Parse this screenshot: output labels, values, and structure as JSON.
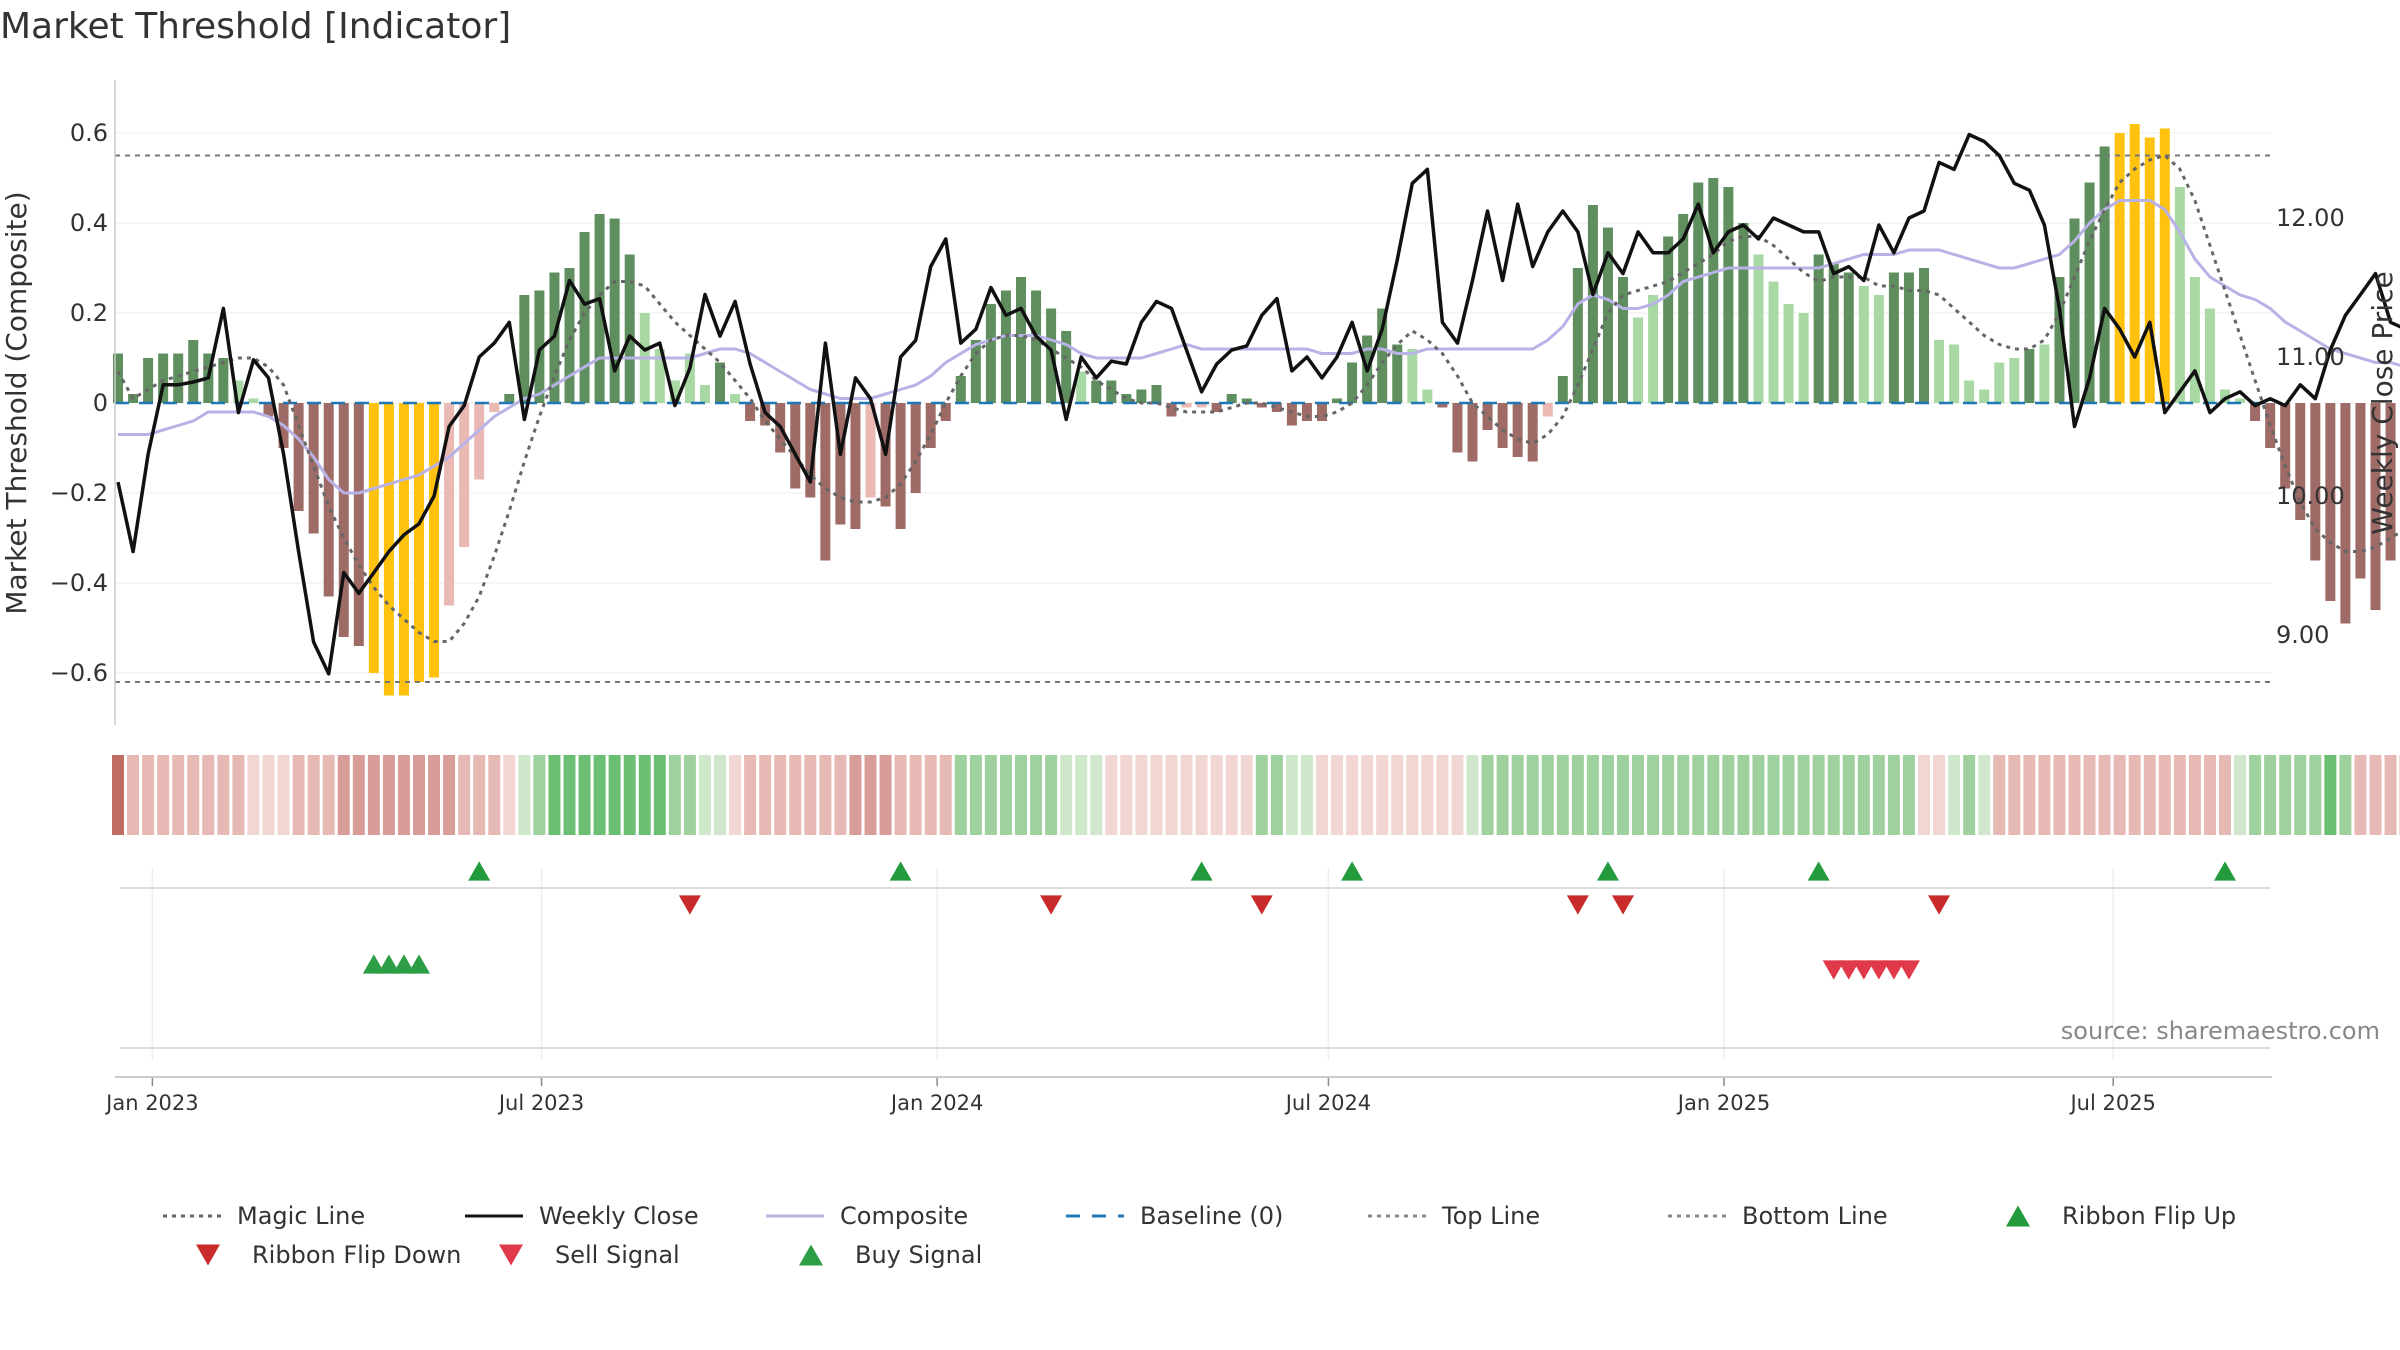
{
  "chart_data": {
    "type": "bar",
    "title": "Market Threshold [Indicator]",
    "ylabel": "Market Threshold (Composite)",
    "y2label": "Weekly Close Price",
    "ylim": [
      -0.72,
      0.72
    ],
    "y2lim": [
      8.35,
      12.9
    ],
    "yticks": [
      0.6,
      0.4,
      0.2,
      0,
      -0.2,
      -0.4,
      -0.6
    ],
    "ytick_labels": [
      "0.6",
      "0.4",
      "0.2",
      "0",
      "−0.2",
      "−0.4",
      "−0.6"
    ],
    "y2ticks": [
      12,
      11,
      10,
      9
    ],
    "y2tick_labels": [
      "12.00",
      "11.00",
      "10.00",
      "9.00"
    ],
    "x_start": "2022-12-16",
    "x_step_days": 7,
    "xticks": [
      {
        "date": "2023-01-01",
        "label": "Jan 2023"
      },
      {
        "date": "2023-07-01",
        "label": "Jul 2023"
      },
      {
        "date": "2024-01-01",
        "label": "Jan 2024"
      },
      {
        "date": "2024-07-01",
        "label": "Jul 2024"
      },
      {
        "date": "2025-01-01",
        "label": "Jan 2025"
      },
      {
        "date": "2025-07-01",
        "label": "Jul 2025"
      }
    ],
    "top_line": 0.55,
    "bottom_line": -0.62,
    "baseline": 0,
    "composite": [
      0.11,
      0.02,
      0.1,
      0.11,
      0.11,
      0.14,
      0.11,
      0.1,
      0.05,
      0.01,
      -0.03,
      -0.1,
      -0.24,
      -0.29,
      -0.43,
      -0.52,
      -0.54,
      -0.6,
      -0.65,
      -0.65,
      -0.62,
      -0.61,
      -0.45,
      -0.32,
      -0.17,
      -0.02,
      0.02,
      0.24,
      0.25,
      0.29,
      0.3,
      0.38,
      0.42,
      0.41,
      0.33,
      0.2,
      0.12,
      0.05,
      0.11,
      0.04,
      0.09,
      0.02,
      -0.04,
      -0.05,
      -0.11,
      -0.19,
      -0.21,
      -0.35,
      -0.27,
      -0.28,
      -0.21,
      -0.23,
      -0.28,
      -0.2,
      -0.1,
      -0.04,
      0.06,
      0.14,
      0.22,
      0.25,
      0.28,
      0.25,
      0.21,
      0.16,
      0.07,
      0.05,
      0.05,
      0.02,
      0.03,
      0.04,
      -0.03,
      -0.01,
      -0.01,
      -0.02,
      0.02,
      0.01,
      -0.01,
      -0.02,
      -0.05,
      -0.04,
      -0.04,
      0.01,
      0.09,
      0.15,
      0.21,
      0.13,
      0.12,
      0.03,
      -0.01,
      -0.11,
      -0.13,
      -0.06,
      -0.1,
      -0.12,
      -0.13,
      -0.03,
      0.06,
      0.3,
      0.44,
      0.39,
      0.28,
      0.19,
      0.24,
      0.37,
      0.42,
      0.49,
      0.5,
      0.48,
      0.4,
      0.33,
      0.27,
      0.22,
      0.2,
      0.33,
      0.31,
      0.29,
      0.26,
      0.24,
      0.29,
      0.29,
      0.3,
      0.14,
      0.13,
      0.05,
      0.03,
      0.09,
      0.1,
      0.12,
      0.13,
      0.28,
      0.41,
      0.49,
      0.57,
      0.6,
      0.62,
      0.59,
      0.61,
      0.48,
      0.28,
      0.21,
      0.03,
      0.01,
      -0.04,
      -0.1,
      -0.19,
      -0.26,
      -0.35,
      -0.44,
      -0.49,
      -0.39,
      -0.46,
      -0.35,
      -0.37,
      -0.4,
      -0.24,
      -0.21,
      -0.18,
      -0.14,
      -0.04,
      0.01,
      0.04,
      0.07,
      0.18,
      0.23,
      0.21,
      0.28
    ],
    "magic_line": [
      0.07,
      0.01,
      0.03,
      0.05,
      0.06,
      0.07,
      0.08,
      0.09,
      0.1,
      0.1,
      0.08,
      0.04,
      -0.05,
      -0.14,
      -0.23,
      -0.3,
      -0.36,
      -0.41,
      -0.45,
      -0.48,
      -0.51,
      -0.53,
      -0.53,
      -0.49,
      -0.43,
      -0.34,
      -0.24,
      -0.13,
      -0.03,
      0.06,
      0.14,
      0.2,
      0.24,
      0.27,
      0.27,
      0.26,
      0.22,
      0.18,
      0.15,
      0.12,
      0.09,
      0.05,
      0.01,
      -0.04,
      -0.08,
      -0.12,
      -0.16,
      -0.19,
      -0.21,
      -0.22,
      -0.22,
      -0.21,
      -0.18,
      -0.13,
      -0.07,
      0.0,
      0.06,
      0.11,
      0.14,
      0.15,
      0.15,
      0.14,
      0.12,
      0.1,
      0.08,
      0.05,
      0.03,
      0.01,
      0.0,
      0.0,
      -0.01,
      -0.02,
      -0.02,
      -0.02,
      -0.01,
      0.0,
      0.0,
      -0.01,
      -0.02,
      -0.03,
      -0.03,
      -0.02,
      0.0,
      0.04,
      0.09,
      0.13,
      0.16,
      0.14,
      0.11,
      0.06,
      0.0,
      -0.03,
      -0.06,
      -0.08,
      -0.09,
      -0.07,
      -0.03,
      0.04,
      0.12,
      0.2,
      0.24,
      0.25,
      0.26,
      0.27,
      0.29,
      0.31,
      0.33,
      0.36,
      0.37,
      0.37,
      0.35,
      0.32,
      0.29,
      0.27,
      0.28,
      0.28,
      0.28,
      0.26,
      0.26,
      0.25,
      0.25,
      0.24,
      0.21,
      0.18,
      0.15,
      0.13,
      0.12,
      0.12,
      0.14,
      0.2,
      0.28,
      0.36,
      0.43,
      0.49,
      0.52,
      0.54,
      0.55,
      0.52,
      0.45,
      0.35,
      0.25,
      0.15,
      0.05,
      -0.05,
      -0.14,
      -0.22,
      -0.28,
      -0.31,
      -0.33,
      -0.33,
      -0.32,
      -0.3,
      -0.28,
      -0.24,
      -0.2,
      -0.15,
      -0.1,
      -0.05,
      -0.02,
      -0.01,
      0.0,
      0.02,
      0.05,
      0.09
    ],
    "composite_line": [
      -0.07,
      -0.07,
      -0.07,
      -0.06,
      -0.05,
      -0.04,
      -0.02,
      -0.02,
      -0.02,
      -0.02,
      -0.03,
      -0.05,
      -0.08,
      -0.12,
      -0.17,
      -0.2,
      -0.2,
      -0.19,
      -0.18,
      -0.17,
      -0.16,
      -0.14,
      -0.12,
      -0.09,
      -0.06,
      -0.03,
      -0.01,
      0.01,
      0.02,
      0.04,
      0.06,
      0.08,
      0.1,
      0.1,
      0.1,
      0.1,
      0.1,
      0.1,
      0.1,
      0.11,
      0.12,
      0.12,
      0.11,
      0.09,
      0.07,
      0.05,
      0.03,
      0.02,
      0.01,
      0.01,
      0.01,
      0.02,
      0.03,
      0.04,
      0.06,
      0.09,
      0.11,
      0.13,
      0.14,
      0.15,
      0.15,
      0.15,
      0.14,
      0.13,
      0.11,
      0.1,
      0.1,
      0.1,
      0.1,
      0.11,
      0.12,
      0.13,
      0.12,
      0.12,
      0.12,
      0.12,
      0.12,
      0.12,
      0.12,
      0.12,
      0.11,
      0.11,
      0.11,
      0.12,
      0.12,
      0.11,
      0.11,
      0.12,
      0.12,
      0.12,
      0.12,
      0.12,
      0.12,
      0.12,
      0.12,
      0.14,
      0.17,
      0.22,
      0.24,
      0.23,
      0.21,
      0.21,
      0.22,
      0.24,
      0.27,
      0.28,
      0.29,
      0.3,
      0.3,
      0.3,
      0.3,
      0.3,
      0.3,
      0.3,
      0.31,
      0.32,
      0.33,
      0.33,
      0.33,
      0.34,
      0.34,
      0.34,
      0.33,
      0.32,
      0.31,
      0.3,
      0.3,
      0.31,
      0.32,
      0.33,
      0.36,
      0.4,
      0.43,
      0.45,
      0.45,
      0.45,
      0.43,
      0.38,
      0.32,
      0.28,
      0.26,
      0.24,
      0.23,
      0.21,
      0.18,
      0.16,
      0.14,
      0.12,
      0.11,
      0.1,
      0.09,
      0.09,
      0.08,
      0.08,
      0.07,
      0.06,
      0.05,
      0.05,
      0.06,
      0.08,
      0.11,
      0.14,
      0.16,
      0.17,
      0.17
    ],
    "weekly_close": [
      10.1,
      9.6,
      10.3,
      10.8,
      10.8,
      10.82,
      10.85,
      11.35,
      10.6,
      10.98,
      10.85,
      10.3,
      9.6,
      8.95,
      8.72,
      9.45,
      9.3,
      9.45,
      9.6,
      9.72,
      9.8,
      10.0,
      10.5,
      10.65,
      11.0,
      11.1,
      11.25,
      10.55,
      11.05,
      11.15,
      11.55,
      11.38,
      11.42,
      10.9,
      11.15,
      11.05,
      11.1,
      10.65,
      10.92,
      11.45,
      11.15,
      11.4,
      10.95,
      10.6,
      10.5,
      10.3,
      10.1,
      11.1,
      10.3,
      10.85,
      10.7,
      10.3,
      11.0,
      11.12,
      11.65,
      11.85,
      11.1,
      11.2,
      11.5,
      11.3,
      11.35,
      11.15,
      11.05,
      10.55,
      11.0,
      10.85,
      10.97,
      10.95,
      11.25,
      11.4,
      11.35,
      11.05,
      10.75,
      10.95,
      11.05,
      11.08,
      11.3,
      11.42,
      10.9,
      11.0,
      10.85,
      11.0,
      11.25,
      10.9,
      11.2,
      11.7,
      12.25,
      12.35,
      11.25,
      11.1,
      11.55,
      12.05,
      11.55,
      12.1,
      11.65,
      11.9,
      12.05,
      11.9,
      11.45,
      11.75,
      11.6,
      11.9,
      11.75,
      11.75,
      11.85,
      12.1,
      11.75,
      11.9,
      11.95,
      11.85,
      12.0,
      11.95,
      11.9,
      11.9,
      11.6,
      11.65,
      11.55,
      11.95,
      11.75,
      12.0,
      12.05,
      12.4,
      12.35,
      12.6,
      12.55,
      12.45,
      12.25,
      12.2,
      11.95,
      11.35,
      10.5,
      10.85,
      11.35,
      11.2,
      11.0,
      11.25,
      10.6,
      10.75,
      10.9,
      10.6,
      10.7,
      10.75,
      10.65,
      10.7,
      10.65,
      10.8,
      10.7,
      11.05,
      11.3,
      11.45,
      11.6,
      11.25,
      11.2
    ],
    "ribbon": [
      -5,
      -2,
      -2,
      -2,
      -2,
      -2,
      -2,
      -2,
      -2,
      -1,
      -1,
      -1,
      -2,
      -2,
      -2,
      -3,
      -3,
      -3,
      -3,
      -3,
      -3,
      -3,
      -3,
      -2,
      -2,
      -2,
      -1,
      1,
      2,
      3,
      3,
      3,
      3,
      3,
      3,
      3,
      3,
      2,
      2,
      1,
      1,
      -1,
      -2,
      -2,
      -2,
      -2,
      -2,
      -2,
      -2,
      -3,
      -3,
      -3,
      -2,
      -2,
      -2,
      -2,
      2,
      2,
      2,
      2,
      2,
      2,
      2,
      1,
      1,
      1,
      -1,
      -1,
      -1,
      -1,
      -1,
      -1,
      -1,
      -1,
      -1,
      -1,
      2,
      2,
      1,
      1,
      -1,
      -1,
      -1,
      -1,
      -1,
      -1,
      -1,
      -1,
      -1,
      -1,
      1,
      2,
      2,
      2,
      2,
      2,
      2,
      2,
      2,
      2,
      2,
      2,
      2,
      2,
      2,
      2,
      2,
      2,
      2,
      2,
      2,
      2,
      2,
      2,
      2,
      2,
      2,
      2,
      2,
      2,
      -1,
      -1,
      1,
      2,
      1,
      -2,
      -2,
      -2,
      -2,
      -2,
      -2,
      -2,
      -2,
      -2,
      -2,
      -2,
      -2,
      -2,
      -2,
      -2,
      -2,
      1,
      2,
      2,
      2,
      2,
      2,
      3,
      2,
      -2,
      -2,
      -2,
      -3,
      -3,
      -3,
      -3,
      -4,
      -4,
      -4,
      -4,
      -3,
      -3,
      -3,
      -3,
      -2,
      -2,
      -2,
      -2,
      1,
      1,
      1,
      1,
      2,
      2
    ],
    "ribbon_flip_up": [
      24,
      52,
      72,
      82,
      99,
      113,
      140
    ],
    "ribbon_flip_down": [
      38,
      62,
      76,
      97,
      100,
      121
    ],
    "buy_signals": [
      17,
      18,
      19,
      20
    ],
    "sell_signals": [
      114,
      115,
      116,
      117,
      118,
      119
    ],
    "series": [
      {
        "name": "Magic Line",
        "color": "#666666",
        "style": "dotted"
      },
      {
        "name": "Weekly Close",
        "color": "#111111",
        "style": "solid"
      },
      {
        "name": "Composite",
        "color": "#b8b2e6",
        "style": "solid"
      },
      {
        "name": "Baseline (0)",
        "color": "#1f77b4",
        "style": "dashed"
      },
      {
        "name": "Top Line",
        "color": "#888888",
        "style": "dotted"
      },
      {
        "name": "Bottom Line",
        "color": "#888888",
        "style": "dotted"
      },
      {
        "name": "Ribbon Flip Up",
        "color": "#239a3b",
        "style": "marker-up"
      },
      {
        "name": "Ribbon Flip Down",
        "color": "#c92a2a",
        "style": "marker-down"
      },
      {
        "name": "Sell Signal",
        "color": "#e0394a",
        "style": "marker-down"
      },
      {
        "name": "Buy Signal",
        "color": "#2e9e46",
        "style": "marker-up"
      }
    ],
    "colors": {
      "bull_strong": "#5f8f5f",
      "bull_weak": "#a8d8a3",
      "bear_strong": "#9e6b66",
      "bear_weak": "#eab9b4",
      "extreme": "#ffc20e"
    },
    "legend_position": "bottom",
    "source": "source: sharemaestro.com"
  }
}
